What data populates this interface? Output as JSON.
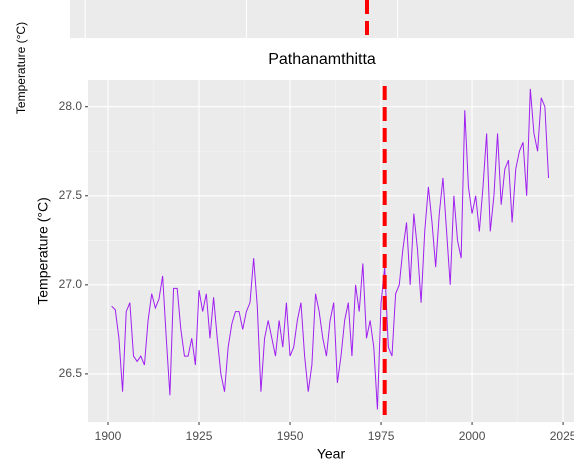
{
  "top_panel": {
    "y_label": "Temperature (°C)"
  },
  "chart_data": {
    "type": "line",
    "title": "Pathanamthitta",
    "x_label": "Year",
    "y_label": "Temperature (°C)",
    "x": [
      1901,
      1902,
      1903,
      1904,
      1905,
      1906,
      1907,
      1908,
      1909,
      1910,
      1911,
      1912,
      1913,
      1914,
      1915,
      1916,
      1917,
      1918,
      1919,
      1920,
      1921,
      1922,
      1923,
      1924,
      1925,
      1926,
      1927,
      1928,
      1929,
      1930,
      1931,
      1932,
      1933,
      1934,
      1935,
      1936,
      1937,
      1938,
      1939,
      1940,
      1941,
      1942,
      1943,
      1944,
      1945,
      1946,
      1947,
      1948,
      1949,
      1950,
      1951,
      1952,
      1953,
      1954,
      1955,
      1956,
      1957,
      1958,
      1959,
      1960,
      1961,
      1962,
      1963,
      1964,
      1965,
      1966,
      1967,
      1968,
      1969,
      1970,
      1971,
      1972,
      1973,
      1974,
      1975,
      1976,
      1977,
      1978,
      1979,
      1980,
      1981,
      1982,
      1983,
      1984,
      1985,
      1986,
      1987,
      1988,
      1989,
      1990,
      1991,
      1992,
      1993,
      1994,
      1995,
      1996,
      1997,
      1998,
      1999,
      2000,
      2001,
      2002,
      2003,
      2004,
      2005,
      2006,
      2007,
      2008,
      2009,
      2010,
      2011,
      2012,
      2013,
      2014,
      2015,
      2016,
      2017,
      2018,
      2019,
      2020,
      2021
    ],
    "values": [
      26.88,
      26.86,
      26.7,
      26.4,
      26.85,
      26.9,
      26.6,
      26.57,
      26.6,
      26.55,
      26.8,
      26.95,
      26.87,
      26.92,
      27.05,
      26.7,
      26.38,
      26.98,
      26.98,
      26.75,
      26.6,
      26.6,
      26.7,
      26.55,
      26.97,
      26.85,
      26.95,
      26.7,
      26.93,
      26.7,
      26.5,
      26.4,
      26.65,
      26.78,
      26.85,
      26.85,
      26.75,
      26.85,
      26.9,
      27.15,
      26.88,
      26.4,
      26.7,
      26.8,
      26.7,
      26.6,
      26.8,
      26.65,
      26.9,
      26.6,
      26.65,
      26.8,
      26.9,
      26.6,
      26.4,
      26.55,
      26.95,
      26.85,
      26.7,
      26.6,
      26.8,
      26.9,
      26.45,
      26.6,
      26.8,
      26.9,
      26.6,
      27.0,
      26.85,
      27.12,
      26.7,
      26.8,
      26.65,
      26.3,
      26.9,
      27.1,
      26.65,
      26.6,
      26.95,
      27.0,
      27.2,
      27.35,
      27.0,
      27.4,
      27.2,
      26.9,
      27.3,
      27.55,
      27.35,
      27.1,
      27.4,
      27.6,
      27.3,
      27.0,
      27.5,
      27.25,
      27.15,
      27.98,
      27.55,
      27.4,
      27.5,
      27.3,
      27.55,
      27.85,
      27.3,
      27.5,
      27.85,
      27.45,
      27.65,
      27.7,
      27.35,
      27.65,
      27.75,
      27.8,
      27.5,
      28.1,
      27.85,
      27.75,
      28.05,
      28.0,
      27.6
    ],
    "color": "#a020f0",
    "vline": 1976,
    "vline_color": "#ff0000",
    "xlim": [
      1894.5,
      2028
    ],
    "xticks": [
      1900,
      1925,
      1950,
      1975,
      2000,
      2025
    ],
    "ylim": [
      26.23,
      28.15
    ],
    "yticks": [
      26.5,
      27.0,
      27.5,
      28.0
    ],
    "grid": true
  }
}
